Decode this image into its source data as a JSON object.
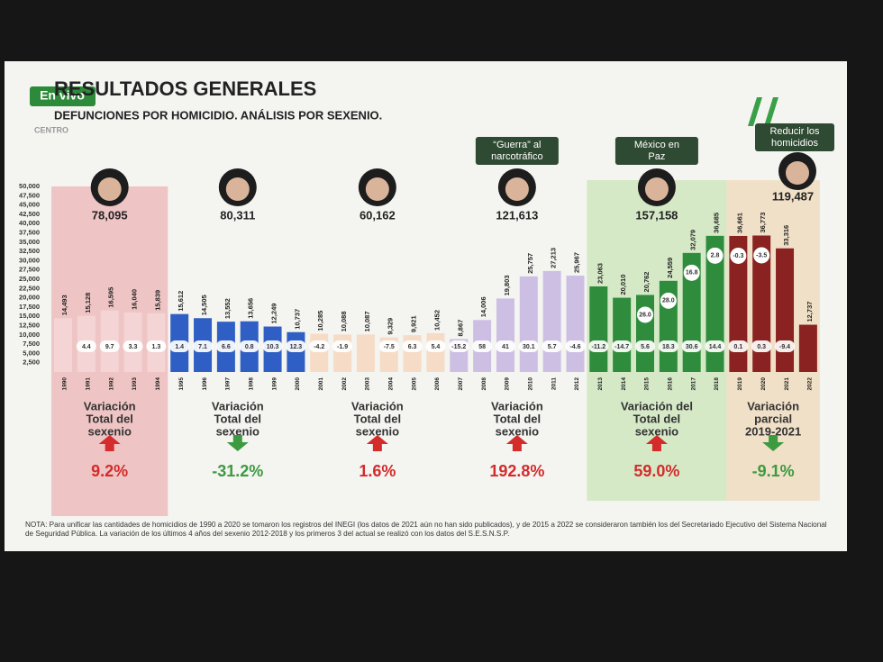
{
  "header": {
    "logo": "En vivo",
    "logo_sub": "CENTRO",
    "title": "RESULTADOS GENERALES",
    "subtitle": "DEFUNCIONES POR HOMICIDIO. ANÁLISIS POR SEXENIO."
  },
  "chart_data": {
    "type": "bar",
    "categories": [
      "1990",
      "1991",
      "1992",
      "1993",
      "1994",
      "1995",
      "1996",
      "1997",
      "1998",
      "1999",
      "2000",
      "2001",
      "2002",
      "2003",
      "2004",
      "2005",
      "2006",
      "2007",
      "2008",
      "2009",
      "2010",
      "2011",
      "2012",
      "2013",
      "2014",
      "2015",
      "2016",
      "2017",
      "2018",
      "2019",
      "2020",
      "2021",
      "2022"
    ],
    "values": [
      14493,
      15128,
      16595,
      16040,
      15839,
      15612,
      14505,
      13552,
      13656,
      12249,
      10737,
      10285,
      10088,
      10087,
      9329,
      9921,
      10452,
      8867,
      14006,
      19803,
      25757,
      27213,
      25967,
      23063,
      20010,
      20762,
      24559,
      32079,
      36685,
      36661,
      36773,
      33316,
      12737
    ],
    "value_labels": [
      "14,493",
      "15,128",
      "16,595",
      "16,040",
      "15,839",
      "15,612",
      "14,505",
      "13,552",
      "13,656",
      "12,249",
      "10,737",
      "10,285",
      "10,088",
      "10,087",
      "9,329",
      "9,921",
      "10,452",
      "8,867",
      "14,006",
      "19,803",
      "25,757",
      "27,213",
      "25,967",
      "23,063",
      "20,010",
      "20,762",
      "24,559",
      "32,079",
      "36,685",
      "36,661",
      "36,773",
      "33,316",
      "12,737"
    ],
    "change_labels": [
      null,
      "4.4",
      "9.7",
      "3.3",
      "1.3",
      "1.4",
      "7.1",
      "6.6",
      "0.8",
      "10.3",
      "12.3",
      "-4.2",
      "-1.9",
      null,
      "-7.5",
      "6.3",
      "5.4",
      "-15.2",
      "58",
      "41",
      "30.1",
      "5.7",
      "-4.6",
      "-11.2",
      "-14.7",
      "5.6",
      "18.3",
      "30.6",
      "14.4",
      "0.1",
      "0.3",
      "-9.4",
      null
    ],
    "secondary_labels": [
      null,
      null,
      null,
      null,
      null,
      null,
      null,
      null,
      null,
      null,
      null,
      null,
      null,
      null,
      null,
      null,
      null,
      null,
      null,
      null,
      null,
      null,
      null,
      null,
      null,
      "26.0",
      "28.0",
      "16.8",
      "2.8",
      "-0.3",
      "-3.5",
      null,
      null
    ],
    "ylim": [
      0,
      50000
    ],
    "yticks": [
      {
        "value": 2500,
        "label": "2,500"
      },
      {
        "value": 5000,
        "label": "5,000"
      },
      {
        "value": 7500,
        "label": "7,500"
      },
      {
        "value": 10000,
        "label": "10,000"
      },
      {
        "value": 12500,
        "label": "12,500"
      },
      {
        "value": 15000,
        "label": "15,000"
      },
      {
        "value": 17500,
        "label": "17,500"
      },
      {
        "value": 20000,
        "label": "20,000"
      },
      {
        "value": 22500,
        "label": "22,500"
      },
      {
        "value": 25000,
        "label": "25,000"
      },
      {
        "value": 27500,
        "label": "27,500"
      },
      {
        "value": 30000,
        "label": "30,000"
      },
      {
        "value": 32500,
        "label": "32,500"
      },
      {
        "value": 35000,
        "label": "35,000"
      },
      {
        "value": 37500,
        "label": "37,500"
      },
      {
        "value": 40000,
        "label": "40,000"
      },
      {
        "value": 42500,
        "label": "42,500"
      },
      {
        "value": 45000,
        "label": "45,000"
      },
      {
        "value": 47500,
        "label": "47,500"
      },
      {
        "value": 50000,
        "label": "50,000"
      }
    ],
    "groups": [
      {
        "start": 0,
        "end": 4,
        "bar_color": "#f4d4d4",
        "background": "#ecbcbc",
        "total_label": "78,095",
        "variation_text": [
          "Variación",
          "Total del",
          "sexenio"
        ],
        "direction": "up",
        "variation_label": "9.2%"
      },
      {
        "start": 5,
        "end": 10,
        "bar_color": "#2f5fc4",
        "total_label": "80,311",
        "variation_text": [
          "Variación",
          "Total del",
          "sexenio"
        ],
        "direction": "down",
        "variation_label": "-31.2%"
      },
      {
        "start": 11,
        "end": 16,
        "bar_color": "#f6dcc6",
        "total_label": "60,162",
        "variation_text": [
          "Variación",
          "Total del",
          "sexenio"
        ],
        "direction": "up",
        "variation_label": "1.6%"
      },
      {
        "start": 17,
        "end": 22,
        "bar_color": "#cdbfe4",
        "tag": "“Guerra” al narcotráfico",
        "total_label": "121,613",
        "variation_text": [
          "Variación",
          "Total del",
          "sexenio"
        ],
        "direction": "up",
        "variation_label": "192.8%"
      },
      {
        "start": 23,
        "end": 28,
        "bar_color": "#2f8c3c",
        "background": "#cfe6c0",
        "tag": "México en Paz",
        "total_label": "157,158",
        "variation_text": [
          "Variación del",
          "Total del",
          "sexenio"
        ],
        "direction": "up",
        "variation_label": "59.0%"
      },
      {
        "start": 29,
        "end": 32,
        "bar_color": "#8a2222",
        "background": "#efdcc0",
        "tag": "Reducir los homicidios",
        "total_label": "119,487",
        "variation_text": [
          "Variación",
          "parcial",
          "2019-2021"
        ],
        "direction": "down",
        "variation_label": "-9.1%"
      }
    ],
    "note": "NOTA: Para unificar las cantidades de homicidios de 1990 a 2020 se tomaron los registros del INEGI (los datos de 2021 aún no han sido publicados), y de 2015 a 2022 se consideraron también los del Secretariado Ejecutivo del Sistema Nacional de Seguridad Pública. La variación de los últimos 4 años del sexenio 2012-2018 y los primeros 3 del actual se realizó con los datos del S.E.S.N.S.P."
  }
}
